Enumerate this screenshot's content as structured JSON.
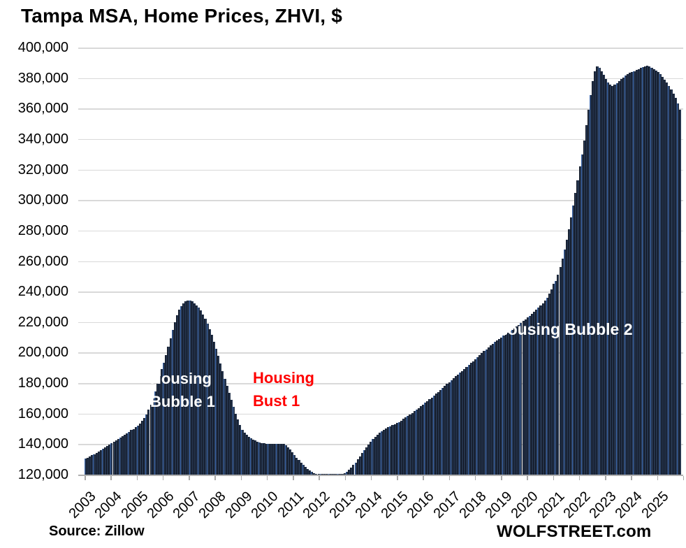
{
  "title": "Tampa MSA, Home Prices, ZHVI, $",
  "source_label": "Source: Zillow",
  "brand_label": "WOLFSTREET.com",
  "annotations": {
    "bubble1_line1": "Housing",
    "bubble1_line2": "Bubble 1",
    "bust1_line1": "Housing",
    "bust1_line2": "Bust 1",
    "bubble2": "Housing Bubble 2"
  },
  "colors": {
    "bar_fill": "#25344c",
    "bar_edge": "#0f1522",
    "bar_stripe": "#3b67ad",
    "grid": "#d9d9d9",
    "axis": "#b0b0b0",
    "tick": "#a9a9a9",
    "annotation_white": "#ffffff",
    "annotation_red": "#ff0000",
    "text": "#000000"
  },
  "chart_data": {
    "type": "bar",
    "title": "Tampa MSA, Home Prices, ZHVI, $",
    "xlabel": "",
    "ylabel": "ZHVI, $",
    "unit": "USD",
    "grid": "horizontal",
    "legend": "none",
    "y_axis": {
      "min": 120000,
      "max": 400000,
      "tick_interval": 20000
    },
    "y_tick_labels": [
      "400,000",
      "380,000",
      "360,000",
      "340,000",
      "320,000",
      "300,000",
      "280,000",
      "260,000",
      "240,000",
      "220,000",
      "200,000",
      "180,000",
      "160,000",
      "140,000",
      "120,000"
    ],
    "year_labels": [
      "2003",
      "2004",
      "2005",
      "2006",
      "2007",
      "2008",
      "2009",
      "2010",
      "2011",
      "2012",
      "2013",
      "2014",
      "2015",
      "2016",
      "2017",
      "2018",
      "2019",
      "2020",
      "2021",
      "2022",
      "2023",
      "2024",
      "2025"
    ],
    "start_month": "2003-01",
    "end_month": "2025-10",
    "series": [
      {
        "name": "Tampa MSA Home Price ZHVI ($, monthly)",
        "values": [
          130500,
          131200,
          131900,
          132700,
          133500,
          134300,
          135100,
          136000,
          136900,
          137800,
          138700,
          139600,
          140500,
          141400,
          142300,
          143200,
          144100,
          145100,
          146100,
          147100,
          148100,
          149100,
          150000,
          151000,
          152000,
          153600,
          155300,
          157200,
          159500,
          162500,
          166000,
          170000,
          174500,
          179500,
          184500,
          189000,
          193500,
          198500,
          204000,
          209500,
          215000,
          220000,
          224500,
          228000,
          230500,
          232500,
          233800,
          234300,
          234000,
          233500,
          232500,
          231000,
          229500,
          227500,
          225000,
          222000,
          219000,
          215500,
          211500,
          207000,
          202500,
          198000,
          193000,
          188000,
          183000,
          178000,
          173500,
          169000,
          164500,
          160000,
          156000,
          152500,
          149500,
          147500,
          146000,
          144800,
          143800,
          143000,
          142300,
          141700,
          141200,
          140800,
          140500,
          140300,
          140200,
          140100,
          140000,
          140000,
          140100,
          140200,
          140300,
          140000,
          139200,
          138000,
          136500,
          134800,
          133000,
          131200,
          129500,
          127800,
          126300,
          125000,
          123800,
          122700,
          121700,
          120900,
          120300,
          119800,
          119400,
          119100,
          118900,
          118800,
          118800,
          118900,
          119000,
          119200,
          119500,
          119900,
          120400,
          121000,
          121800,
          123000,
          124500,
          126200,
          128000,
          130000,
          132000,
          134000,
          136000,
          138000,
          139900,
          141700,
          143400,
          144900,
          146200,
          147400,
          148500,
          149400,
          150200,
          151000,
          151700,
          152400,
          153100,
          153800,
          154500,
          155500,
          156500,
          157500,
          158500,
          159500,
          160500,
          161500,
          162500,
          163600,
          164700,
          165800,
          167000,
          168200,
          169400,
          170600,
          171800,
          173000,
          174200,
          175500,
          176800,
          178100,
          179400,
          180700,
          182000,
          183200,
          184400,
          185600,
          186800,
          188000,
          189200,
          190500,
          191800,
          193100,
          194400,
          195700,
          197000,
          198400,
          199700,
          201000,
          202200,
          203400,
          204600,
          205800,
          206900,
          208000,
          209000,
          210000,
          211000,
          212000,
          213000,
          214000,
          215000,
          216000,
          217100,
          218200,
          219400,
          220600,
          221800,
          223000,
          224200,
          225500,
          226800,
          228100,
          229400,
          230800,
          232300,
          234000,
          236000,
          238500,
          241500,
          245000,
          247000,
          251000,
          256000,
          261500,
          267500,
          274000,
          281000,
          288500,
          296500,
          304500,
          313000,
          322000,
          330000,
          339000,
          349000,
          359000,
          369000,
          378000,
          384500,
          387500,
          386500,
          384500,
          382000,
          379500,
          377000,
          375500,
          375000,
          375500,
          376500,
          377800,
          379200,
          380500,
          381700,
          382700,
          383500,
          384100,
          384600,
          385200,
          385900,
          386600,
          387300,
          387800,
          388000,
          387600,
          386900,
          386000,
          385000,
          383800,
          382400,
          380800,
          379000,
          377000,
          374800,
          372400,
          369800,
          366900,
          363300,
          359000
        ]
      }
    ],
    "annotations": [
      {
        "text": "Housing Bubble 1",
        "color": "white",
        "position": "over 2006-2008 peak"
      },
      {
        "text": "Housing Bust 1",
        "color": "red",
        "position": "over 2010-2012 trough"
      },
      {
        "text": "Housing Bubble 2",
        "color": "white",
        "position": "over 2019-2025 peak"
      }
    ]
  }
}
